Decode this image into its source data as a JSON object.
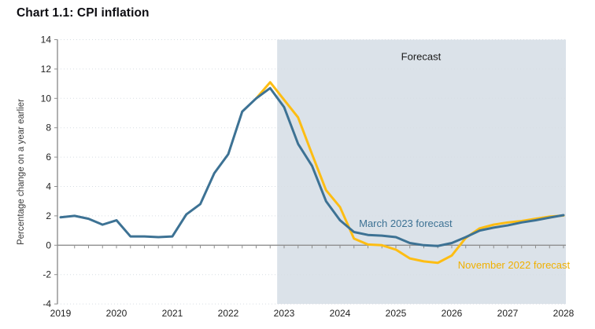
{
  "header": {
    "title": "Chart 1.1: CPI inflation"
  },
  "colors": {
    "march_2023_line": "#3d7294",
    "november_2022_line": "#fdbd13",
    "november_2022_label": "#f0b000",
    "forecast_region_fill": "#dbe2e9",
    "axis": "#8f8f8f",
    "gridline": "#d7dde3",
    "title_text": "#0d0d12"
  },
  "chart_data": {
    "type": "line",
    "title": "Chart 1.1: CPI inflation",
    "xlabel": "",
    "ylabel": "Percentage change on a year earlier",
    "ylim": [
      -4,
      14
    ],
    "y_ticks": [
      14,
      12,
      10,
      8,
      6,
      4,
      2,
      0,
      -2,
      -4
    ],
    "x_tick_labels": [
      "2019",
      "2020",
      "2021",
      "2022",
      "2023",
      "2024",
      "2025",
      "2026",
      "2027",
      "2028"
    ],
    "x_minor_tick_interval_years": 0.25,
    "grid": "faint dotted horizontal lines at each labelled y value",
    "legend": "inline labels next to lines",
    "forecast_region": {
      "label": "Forecast",
      "start": 2022.875,
      "end": 2028.04,
      "label_pos": {
        "x": 2025.45,
        "y": 12.6
      }
    },
    "series": [
      {
        "id": "november-2022-forecast",
        "name": "November 2022 forecast",
        "color": "#fdbd13",
        "label_color": "#f0b000",
        "label_anchor": "start",
        "label_pos": {
          "x": 2026.11,
          "y": -1.6
        },
        "x_start": 2022.5,
        "x_step": 0.25,
        "values": [
          10.0,
          11.1,
          9.9,
          8.7,
          6.2,
          3.75,
          2.6,
          0.45,
          0.05,
          0.0,
          -0.3,
          -0.9,
          -1.1,
          -1.2,
          -0.7,
          0.5,
          1.15,
          1.4,
          1.55,
          1.65,
          1.8,
          1.95,
          2.02
        ]
      },
      {
        "id": "march-2023-forecast",
        "name": "March 2023 forecast",
        "color": "#3d7294",
        "label_color": "#3d7294",
        "label_anchor": "start",
        "label_pos": {
          "x": 2024.34,
          "y": 1.25
        },
        "x_start": 2019.0,
        "x_step": 0.25,
        "values": [
          1.9,
          2.0,
          1.8,
          1.4,
          1.7,
          0.6,
          0.6,
          0.55,
          0.6,
          2.1,
          2.8,
          4.9,
          6.2,
          9.1,
          10.0,
          10.7,
          9.4,
          6.9,
          5.4,
          3.0,
          1.7,
          0.9,
          0.7,
          0.65,
          0.55,
          0.15,
          0.0,
          -0.05,
          0.15,
          0.55,
          1.0,
          1.2,
          1.35,
          1.55,
          1.7,
          1.88,
          2.05
        ]
      }
    ]
  }
}
